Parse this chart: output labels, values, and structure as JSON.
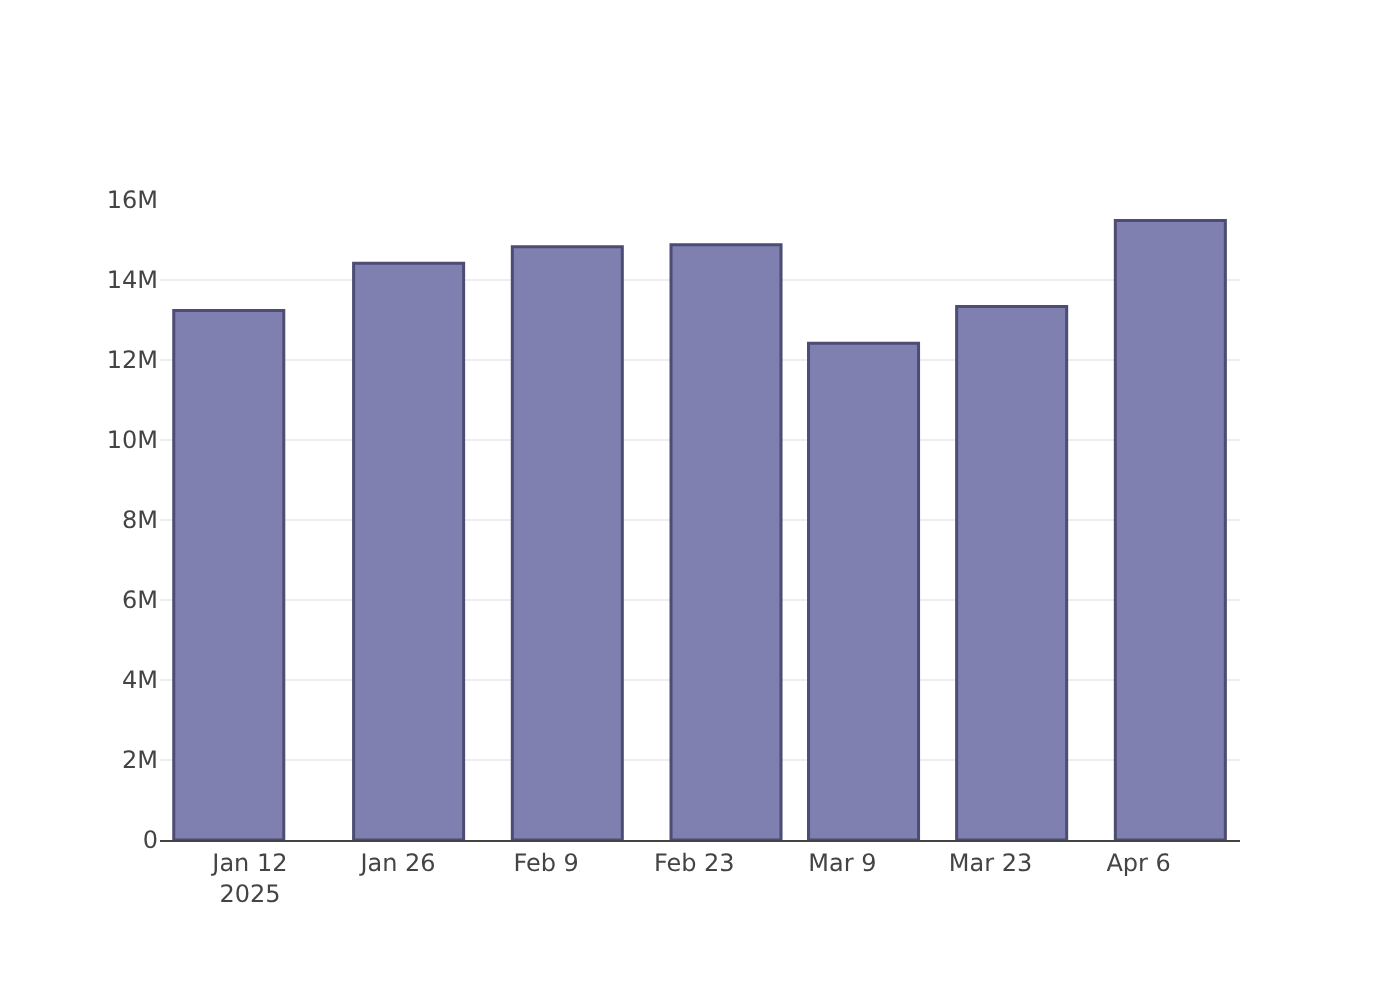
{
  "chart_data": {
    "type": "bar",
    "x": [
      "2025-01-10",
      "2025-01-27",
      "2025-02-11",
      "2025-02-26",
      "2025-03-11",
      "2025-03-25",
      "2025-04-09"
    ],
    "series": [
      {
        "color": "#7f7fb0",
        "values": [
          13240000,
          14420000,
          14830000,
          14880000,
          12420000,
          13340000,
          15490000
        ]
      }
    ],
    "xlim": [
      "2025-01-03T12:00",
      "2025-04-15T14:00"
    ],
    "xticks": [
      {
        "value": "2025-01-12",
        "label": "Jan 12\n2025"
      },
      {
        "value": "2025-01-26",
        "label": "Jan 26"
      },
      {
        "value": "2025-02-09",
        "label": "Feb 9"
      },
      {
        "value": "2025-02-23",
        "label": "Feb 23"
      },
      {
        "value": "2025-03-09",
        "label": "Mar 9"
      },
      {
        "value": "2025-03-23",
        "label": "Mar 23"
      },
      {
        "value": "2025-04-06",
        "label": "Apr 6"
      }
    ],
    "ylim": [
      0,
      16000000
    ],
    "yticks": [
      {
        "value": 0,
        "label": "0"
      },
      {
        "value": 2000000,
        "label": "2M"
      },
      {
        "value": 4000000,
        "label": "4M"
      },
      {
        "value": 6000000,
        "label": "6M"
      },
      {
        "value": 8000000,
        "label": "8M"
      },
      {
        "value": 10000000,
        "label": "10M"
      },
      {
        "value": 12000000,
        "label": "12M"
      },
      {
        "value": 14000000,
        "label": "14M"
      },
      {
        "value": 16000000,
        "label": "16M"
      }
    ],
    "grid": "y",
    "legend": false
  }
}
